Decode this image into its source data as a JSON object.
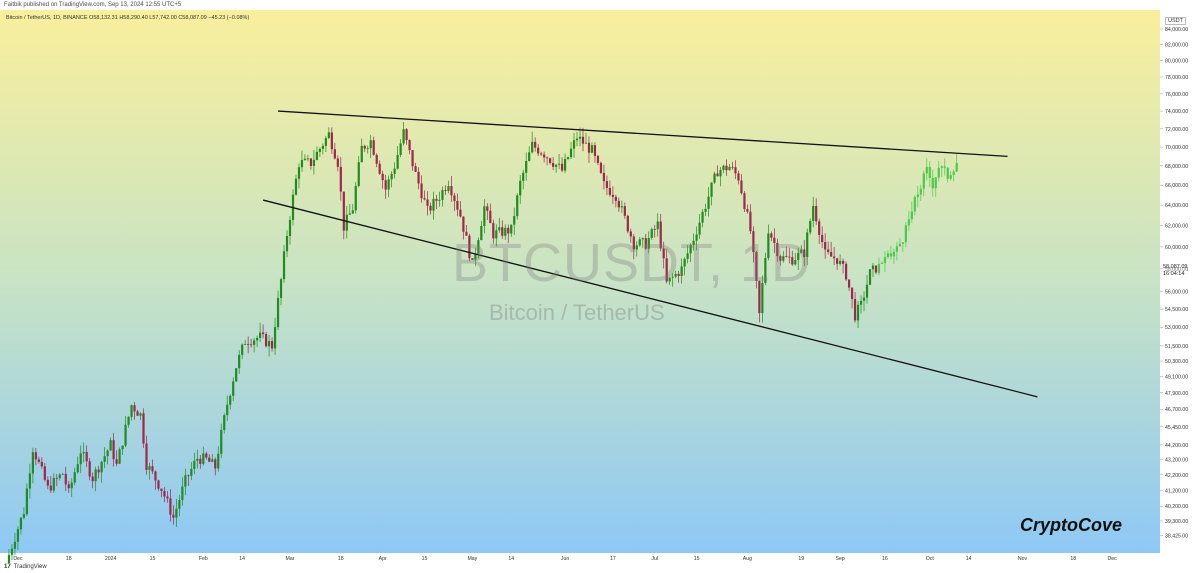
{
  "topbar": {
    "text": "Faitbik published on TradingView.com, Sep 13, 2024 12:55 UTC+5"
  },
  "header": {
    "symbol_line": "Bitcoin / TetherUS, 1D, BINANCE  O58,132.31  H58,290.40  L57,742.00  C58,087.09  −45.23 (−0.08%)"
  },
  "watermark": {
    "symbol": "BTCUSDT, 1D",
    "name": "Bitcoin / TetherUS"
  },
  "brand": "CryptoCove",
  "footer": {
    "logo_glyph": "17",
    "logo_text": "TradingView"
  },
  "price_axis": {
    "currency": "USDT",
    "last_price": "58,087.09",
    "countdown": "16:04:14"
  },
  "colors": {
    "bg_top": "#f9ef9c",
    "bg_mid": "#c8e3c5",
    "bg_bottom": "#8ec8f5",
    "up_candle": "#1e8c1e",
    "down_candle": "#a0264a",
    "projection": "#4cc94c",
    "trendline": "#111111"
  },
  "chart_data": {
    "type": "candlestick",
    "symbol": "BTCUSDT",
    "timeframe": "1D",
    "exchange": "BINANCE",
    "x_axis": {
      "tick_labels": [
        "Dec",
        "18",
        "2024",
        "15",
        "Feb",
        "14",
        "Mar",
        "18",
        "Apr",
        "15",
        "May",
        "14",
        "Jun",
        "17",
        "Jul",
        "15",
        "Aug",
        "19",
        "Sep",
        "16",
        "Oct",
        "14",
        "Nov",
        "18",
        "Dec"
      ],
      "tick_dates": [
        "2023-12-01",
        "2023-12-18",
        "2024-01-01",
        "2024-01-15",
        "2024-02-01",
        "2024-02-14",
        "2024-03-01",
        "2024-03-18",
        "2024-04-01",
        "2024-04-15",
        "2024-05-01",
        "2024-05-14",
        "2024-06-01",
        "2024-06-17",
        "2024-07-01",
        "2024-07-15",
        "2024-08-01",
        "2024-08-19",
        "2024-09-01",
        "2024-09-16",
        "2024-10-01",
        "2024-10-14",
        "2024-11-01",
        "2024-11-18",
        "2024-12-01"
      ],
      "range": [
        "2023-11-25",
        "2024-12-17"
      ]
    },
    "y_axis": {
      "tick_labels": [
        "84,000.00",
        "82,000.00",
        "80,000.00",
        "78,000.00",
        "76,000.00",
        "74,000.00",
        "72,000.00",
        "70,000.00",
        "68,000.00",
        "66,000.00",
        "64,000.00",
        "62,000.00",
        "60,000.00",
        "58,000.00",
        "56,000.00",
        "54,500.00",
        "53,000.00",
        "51,500.00",
        "50,300.00",
        "49,100.00",
        "47,900.00",
        "46,700.00",
        "45,450.00",
        "44,200.00",
        "43,200.00",
        "42,200.00",
        "41,200.00",
        "40,200.00",
        "39,300.00",
        "38,425.00"
      ],
      "tick_values": [
        84000,
        82000,
        80000,
        78000,
        76000,
        74000,
        72000,
        70000,
        68000,
        66000,
        64000,
        62000,
        60000,
        58000,
        56000,
        54500,
        53000,
        51500,
        50300,
        49100,
        47900,
        46700,
        45450,
        44200,
        43200,
        42200,
        41200,
        40200,
        39300,
        38425
      ],
      "scale": "log",
      "range": [
        37400,
        86500
      ]
    },
    "grid": false,
    "last_price": 58087.09,
    "anchors": [
      [
        "2023-11-28",
        37300
      ],
      [
        "2023-12-03",
        39900
      ],
      [
        "2023-12-06",
        44000
      ],
      [
        "2023-12-11",
        41300
      ],
      [
        "2023-12-16",
        42300
      ],
      [
        "2023-12-18",
        41000
      ],
      [
        "2023-12-22",
        43800
      ],
      [
        "2023-12-26",
        42000
      ],
      [
        "2024-01-01",
        44200
      ],
      [
        "2024-01-03",
        42800
      ],
      [
        "2024-01-08",
        47000
      ],
      [
        "2024-01-11",
        46300
      ],
      [
        "2024-01-13",
        42900
      ],
      [
        "2024-01-18",
        41300
      ],
      [
        "2024-01-22",
        39500
      ],
      [
        "2024-01-26",
        41800
      ],
      [
        "2024-01-30",
        43300
      ],
      [
        "2024-02-02",
        43200
      ],
      [
        "2024-02-05",
        42700
      ],
      [
        "2024-02-09",
        47100
      ],
      [
        "2024-02-12",
        49900
      ],
      [
        "2024-02-15",
        51900
      ],
      [
        "2024-02-20",
        52200
      ],
      [
        "2024-02-24",
        51500
      ],
      [
        "2024-02-27",
        57000
      ],
      [
        "2024-02-29",
        61200
      ],
      [
        "2024-03-04",
        68300
      ],
      [
        "2024-03-08",
        68300
      ],
      [
        "2024-03-14",
        71400
      ],
      [
        "2024-03-17",
        68400
      ],
      [
        "2024-03-19",
        61900
      ],
      [
        "2024-03-22",
        63700
      ],
      [
        "2024-03-25",
        69900
      ],
      [
        "2024-03-28",
        70700
      ],
      [
        "2024-04-02",
        65600
      ],
      [
        "2024-04-05",
        68000
      ],
      [
        "2024-04-08",
        71600
      ],
      [
        "2024-04-12",
        67100
      ],
      [
        "2024-04-16",
        63400
      ],
      [
        "2024-04-20",
        64900
      ],
      [
        "2024-04-23",
        66400
      ],
      [
        "2024-04-27",
        63000
      ],
      [
        "2024-05-01",
        58300
      ],
      [
        "2024-05-05",
        63800
      ],
      [
        "2024-05-08",
        61200
      ],
      [
        "2024-05-14",
        61600
      ],
      [
        "2024-05-17",
        66200
      ],
      [
        "2024-05-21",
        70200
      ],
      [
        "2024-05-25",
        69300
      ],
      [
        "2024-05-31",
        67500
      ],
      [
        "2024-06-05",
        71100
      ],
      [
        "2024-06-10",
        69600
      ],
      [
        "2024-06-14",
        66000
      ],
      [
        "2024-06-18",
        65000
      ],
      [
        "2024-06-24",
        60300
      ],
      [
        "2024-06-28",
        60300
      ],
      [
        "2024-07-02",
        62100
      ],
      [
        "2024-07-05",
        56700
      ],
      [
        "2024-07-10",
        58000
      ],
      [
        "2024-07-14",
        60800
      ],
      [
        "2024-07-18",
        64000
      ],
      [
        "2024-07-22",
        67500
      ],
      [
        "2024-07-26",
        67900
      ],
      [
        "2024-07-29",
        66800
      ],
      [
        "2024-08-02",
        61500
      ],
      [
        "2024-08-05",
        54000
      ],
      [
        "2024-08-08",
        61700
      ],
      [
        "2024-08-12",
        59000
      ],
      [
        "2024-08-16",
        58900
      ],
      [
        "2024-08-20",
        59500
      ],
      [
        "2024-08-23",
        64000
      ],
      [
        "2024-08-27",
        59300
      ],
      [
        "2024-08-31",
        58900
      ],
      [
        "2024-09-03",
        57500
      ],
      [
        "2024-09-06",
        54000
      ],
      [
        "2024-09-08",
        54800
      ],
      [
        "2024-09-11",
        57600
      ],
      [
        "2024-09-13",
        58087
      ]
    ],
    "projection": [
      [
        "2024-09-14",
        58500
      ],
      [
        "2024-09-17",
        58900
      ],
      [
        "2024-09-20",
        59800
      ],
      [
        "2024-09-23",
        61500
      ],
      [
        "2024-09-27",
        65200
      ],
      [
        "2024-09-30",
        67500
      ],
      [
        "2024-10-02",
        66200
      ],
      [
        "2024-10-04",
        68000
      ],
      [
        "2024-10-07",
        67000
      ],
      [
        "2024-10-10",
        68500
      ]
    ],
    "trendlines": [
      {
        "from": [
          "2024-02-26",
          74000
        ],
        "to": [
          "2024-10-27",
          69000
        ]
      },
      {
        "from": [
          "2024-02-21",
          64500
        ],
        "to": [
          "2024-11-06",
          47600
        ]
      }
    ]
  }
}
